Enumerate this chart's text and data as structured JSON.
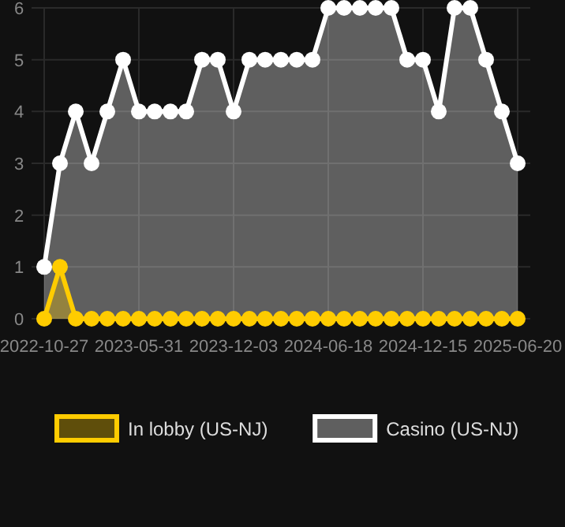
{
  "chart_data": {
    "type": "area",
    "categories": [
      "2022-10-27",
      null,
      null,
      null,
      null,
      null,
      "2023-05-31",
      null,
      null,
      null,
      null,
      null,
      "2023-12-03",
      null,
      null,
      null,
      null,
      null,
      "2024-06-18",
      null,
      null,
      null,
      null,
      null,
      "2024-12-15",
      null,
      null,
      null,
      null,
      null,
      "2025-06-20"
    ],
    "series": [
      {
        "name": "Casino (US-NJ)",
        "color": "#ffffff",
        "values": [
          1,
          3,
          4,
          3,
          4,
          5,
          4,
          4,
          4,
          4,
          5,
          5,
          4,
          5,
          5,
          5,
          5,
          5,
          6,
          6,
          6,
          6,
          6,
          5,
          5,
          4,
          6,
          6,
          5,
          4,
          3
        ]
      },
      {
        "name": "In lobby (US-NJ)",
        "color": "#ffcc00",
        "values": [
          0,
          1,
          0,
          0,
          0,
          0,
          0,
          0,
          0,
          0,
          0,
          0,
          0,
          0,
          0,
          0,
          0,
          0,
          0,
          0,
          0,
          0,
          0,
          0,
          0,
          0,
          0,
          0,
          0,
          0,
          0
        ]
      }
    ],
    "ylim": [
      0,
      6
    ],
    "yticks": [
      0,
      1,
      2,
      3,
      4,
      5,
      6
    ],
    "grid": true,
    "legend": "bottom",
    "marker": "circle",
    "line_style": "solid"
  }
}
